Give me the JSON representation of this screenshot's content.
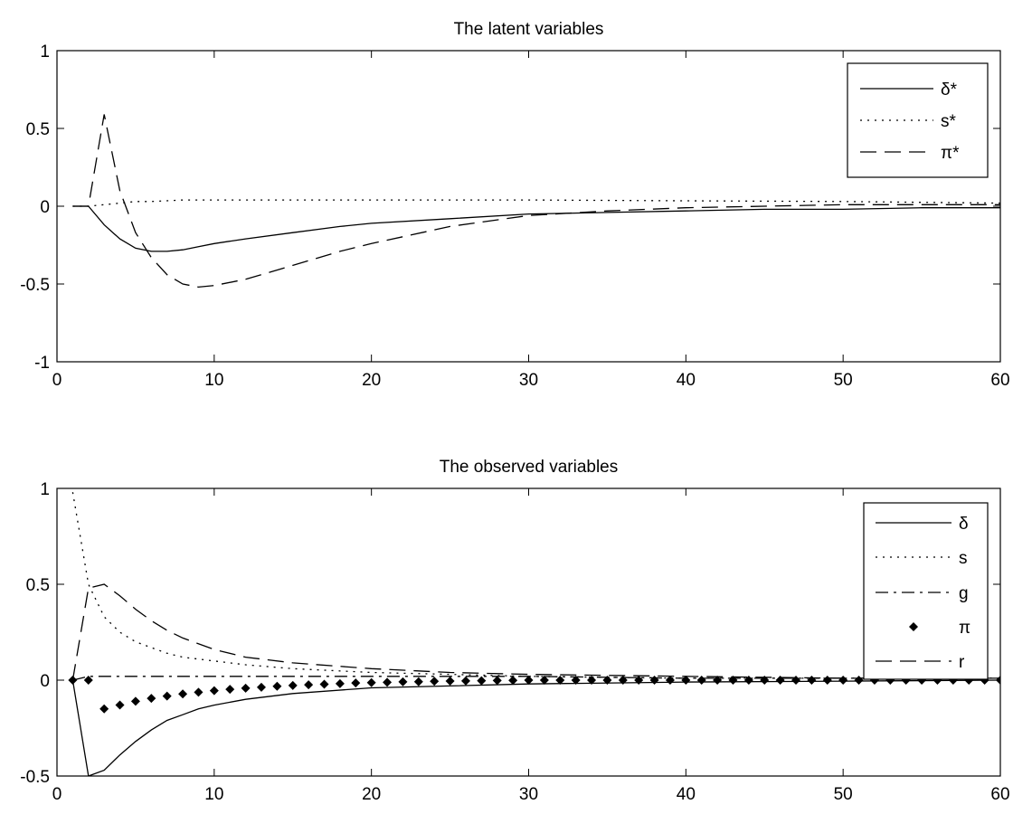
{
  "chart_data": [
    {
      "type": "line",
      "title": "The latent variables",
      "xlabel": "",
      "ylabel": "",
      "xlim": [
        0,
        60
      ],
      "ylim": [
        -1,
        1
      ],
      "xticks": [
        0,
        10,
        20,
        30,
        40,
        50,
        60
      ],
      "yticks": [
        -1,
        -0.5,
        0,
        0.5,
        1
      ],
      "xtick_labels": [
        "0",
        "10",
        "20",
        "30",
        "40",
        "50",
        "60"
      ],
      "ytick_labels": [
        "-1",
        "-0.5",
        "0",
        "0.5",
        "1"
      ],
      "grid": false,
      "legend_position": "top-right",
      "series": [
        {
          "name": "δ*",
          "style": "solid",
          "x": [
            1,
            2,
            3,
            4,
            5,
            6,
            7,
            8,
            9,
            10,
            12,
            15,
            18,
            20,
            25,
            30,
            35,
            40,
            45,
            50,
            55,
            60
          ],
          "y": [
            0,
            0,
            -0.12,
            -0.21,
            -0.27,
            -0.29,
            -0.29,
            -0.28,
            -0.26,
            -0.24,
            -0.21,
            -0.17,
            -0.13,
            -0.11,
            -0.08,
            -0.05,
            -0.04,
            -0.03,
            -0.02,
            -0.02,
            -0.01,
            -0.01
          ]
        },
        {
          "name": "s*",
          "style": "dotted",
          "x": [
            1,
            2,
            3,
            4,
            5,
            6,
            8,
            10,
            20,
            30,
            40,
            50,
            60
          ],
          "y": [
            0,
            0,
            0.01,
            0.02,
            0.03,
            0.03,
            0.04,
            0.04,
            0.04,
            0.04,
            0.035,
            0.03,
            0.02
          ]
        },
        {
          "name": "π*",
          "style": "dashed",
          "x": [
            1,
            2,
            3,
            4,
            5,
            6,
            7,
            8,
            9,
            10,
            12,
            15,
            18,
            20,
            25,
            30,
            35,
            40,
            45,
            50,
            55,
            60
          ],
          "y": [
            0,
            0,
            0.59,
            0.1,
            -0.17,
            -0.33,
            -0.44,
            -0.5,
            -0.52,
            -0.51,
            -0.47,
            -0.38,
            -0.29,
            -0.24,
            -0.13,
            -0.06,
            -0.03,
            -0.01,
            0,
            0.01,
            0.01,
            0.01
          ]
        }
      ]
    },
    {
      "type": "line",
      "title": "The observed variables",
      "xlabel": "",
      "ylabel": "",
      "xlim": [
        0,
        60
      ],
      "ylim": [
        -0.5,
        1
      ],
      "xticks": [
        0,
        10,
        20,
        30,
        40,
        50,
        60
      ],
      "yticks": [
        -0.5,
        0,
        0.5,
        1
      ],
      "xtick_labels": [
        "0",
        "10",
        "20",
        "30",
        "40",
        "50",
        "60"
      ],
      "ytick_labels": [
        "-0.5",
        "0",
        "0.5",
        "1"
      ],
      "grid": false,
      "legend_position": "top-right",
      "series": [
        {
          "name": "δ",
          "style": "solid",
          "x": [
            1,
            2,
            3,
            4,
            5,
            6,
            7,
            8,
            9,
            10,
            12,
            15,
            20,
            25,
            30,
            40,
            50,
            60
          ],
          "y": [
            0,
            -0.5,
            -0.47,
            -0.39,
            -0.32,
            -0.26,
            -0.21,
            -0.18,
            -0.15,
            -0.13,
            -0.1,
            -0.07,
            -0.04,
            -0.03,
            -0.02,
            -0.01,
            -0.005,
            0
          ]
        },
        {
          "name": "s",
          "style": "dotted",
          "x": [
            1,
            2,
            3,
            4,
            5,
            6,
            7,
            8,
            10,
            12,
            15,
            20,
            25,
            30,
            40,
            50,
            60
          ],
          "y": [
            0.98,
            0.5,
            0.33,
            0.25,
            0.2,
            0.17,
            0.14,
            0.12,
            0.1,
            0.08,
            0.06,
            0.04,
            0.03,
            0.02,
            0.01,
            0.01,
            0.01
          ]
        },
        {
          "name": "g",
          "style": "dashdot",
          "x": [
            1,
            2,
            3,
            5,
            10,
            20,
            30,
            40,
            50,
            60
          ],
          "y": [
            0,
            0.02,
            0.02,
            0.02,
            0.02,
            0.02,
            0.02,
            0.01,
            0.01,
            0.01
          ]
        },
        {
          "name": "π",
          "style": "marker",
          "x": [
            1,
            2,
            3,
            4,
            5,
            6,
            7,
            8,
            9,
            10,
            11,
            12,
            13,
            14,
            15,
            16,
            17,
            18,
            19,
            20,
            21,
            22,
            23,
            24,
            25,
            26,
            27,
            28,
            29,
            30,
            31,
            32,
            33,
            34,
            35,
            36,
            37,
            38,
            39,
            40,
            41,
            42,
            43,
            44,
            45,
            46,
            47,
            48,
            49,
            50,
            51,
            52,
            53,
            54,
            55,
            56,
            57,
            58,
            59,
            60
          ],
          "y": [
            0,
            0,
            -0.15,
            -0.13,
            -0.11,
            -0.095,
            -0.083,
            -0.072,
            -0.063,
            -0.055,
            -0.048,
            -0.042,
            -0.037,
            -0.032,
            -0.028,
            -0.024,
            -0.021,
            -0.018,
            -0.015,
            -0.013,
            -0.011,
            -0.009,
            -0.008,
            -0.006,
            -0.005,
            -0.004,
            -0.003,
            -0.002,
            -0.001,
            0,
            0,
            0,
            0,
            0,
            0,
            0,
            0,
            0,
            0,
            0,
            0,
            0,
            0,
            0,
            0,
            0,
            0,
            0,
            0,
            0,
            0,
            0,
            0,
            0,
            0,
            0,
            0,
            0,
            0,
            0
          ]
        },
        {
          "name": "r",
          "style": "dashed",
          "x": [
            1,
            2,
            3,
            4,
            5,
            6,
            7,
            8,
            10,
            12,
            15,
            20,
            25,
            30,
            40,
            50,
            60
          ],
          "y": [
            0,
            0.48,
            0.5,
            0.44,
            0.37,
            0.31,
            0.26,
            0.22,
            0.16,
            0.12,
            0.09,
            0.06,
            0.04,
            0.03,
            0.02,
            0.01,
            0.01
          ]
        }
      ]
    }
  ]
}
